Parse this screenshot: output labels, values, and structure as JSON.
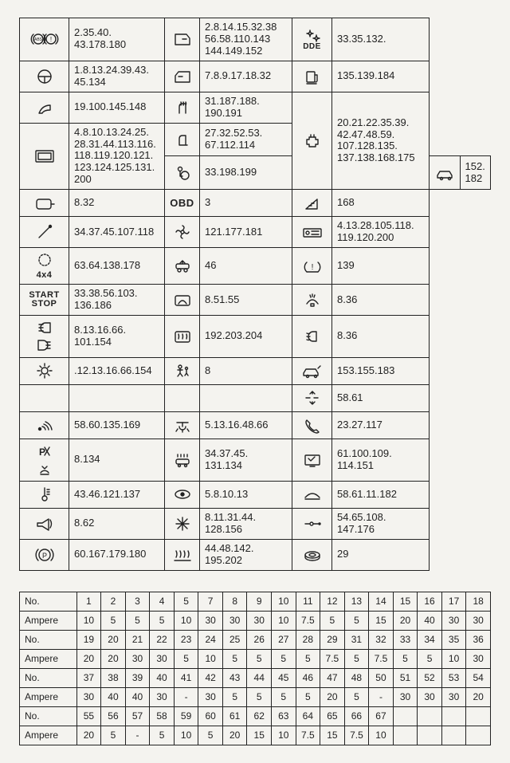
{
  "index_table": {
    "rows": [
      {
        "i1": "abs",
        "t1": "2.35.40. 43.178.180",
        "i2": "door-l",
        "t2": "2.8.14.15.32.38 56.58.110.143 144.149.152",
        "i3": "dde",
        "t3": "33.35.132.",
        "i1_rs": 1,
        "i3_rs": 1
      },
      {
        "i1": "steer",
        "t1": "1.8.13.24.39.43. 45.134",
        "i2": "door-r",
        "t2": "7.8.9.17.18.32",
        "i3": "fuel",
        "t3": "135.139.184",
        "i1_rs": 1,
        "i3_rs": 1
      },
      {
        "i1": "pedal",
        "t1": "19.100.145.148",
        "i2": "heatseat",
        "t2": "31.187.188. 190.191",
        "i3": "engine",
        "t3": "20.21.22.35.39. 42.47.48.59. 107.128.135. 137.138.168.175",
        "i1_rs": 1,
        "i3_rs": 3
      },
      {
        "i1": "display",
        "t1": "4.8.10.13.24.25. 28.31.44.113.116. 118.119.120.121. 123.124.125.131. 200",
        "i2": "seat",
        "t2": "27.32.52.53. 67.112.114",
        "i3": "",
        "t3": "",
        "i1_rs": 2,
        "i3_rs": 0,
        "t1_rs": 2
      },
      {
        "i1": "",
        "t1": "",
        "i2": "airbag",
        "t2": "33.198.199",
        "i3": "car",
        "t3": "152.182",
        "i1_rs": 0,
        "i3_rs": 1
      },
      {
        "i1": "mirror",
        "t1": "8.32",
        "i2": "obd",
        "t2": "3",
        "i3": "ramp",
        "t3": "168",
        "i1_rs": 1,
        "i3_rs": 1
      },
      {
        "i1": "wand",
        "t1": "34.37.45.107.118",
        "i2": "fan",
        "t2": "121.177.181",
        "i3": "radio",
        "t3": "4.13.28.105.118. 119.120.200",
        "i1_rs": 1,
        "i3_rs": 1
      },
      {
        "i1": "4x4",
        "t1": "63.64.138.178",
        "i2": "carlift",
        "t2": "46",
        "i3": "tpms",
        "t3": "139",
        "i1_rs": 1,
        "i3_rs": 1
      },
      {
        "i1": "startstop",
        "t1": "33.38.56.103. 136.186",
        "i2": "rearwipe",
        "t2": "8.51.55",
        "i3": "wash",
        "t3": "8.36",
        "i1_rs": 1,
        "i3_rs": 1
      },
      {
        "i1": "headlight",
        "t1": "8.13.16.66. 101.154",
        "i2": "defrost",
        "t2": "192.203.204",
        "i3": "foglight",
        "t3": "8.36",
        "i1_rs": 1,
        "i3_rs": 1
      },
      {
        "i1": "sun",
        "t1": ".12.13.16.66.154",
        "i2": "child",
        "t2": "8",
        "i3": "tailgate",
        "t3": "153.155.183",
        "i1_rs": 1,
        "i3_rs": 1
      },
      {
        "i1": "blank",
        "t1": "",
        "i2": "blank2",
        "t2": "",
        "i3": "level",
        "t3": "58.61",
        "i1_rs": 1,
        "i3_rs": 1
      },
      {
        "i1": "sensor",
        "t1": "58.60.135.169",
        "i2": "domelight",
        "t2": "5.13.16.48.66",
        "i3": "phone",
        "t3": "23.27.117",
        "i1_rs": 1,
        "i3_rs": 1
      },
      {
        "i1": "park",
        "t1": "8.134",
        "i2": "carwash",
        "t2": "34.37.45. 131.134",
        "i3": "screen",
        "t3": "61.100.109. 114.151",
        "i1_rs": 1,
        "i3_rs": 1
      },
      {
        "i1": "therm",
        "t1": "43.46.121.137",
        "i2": "eye",
        "t2": "5.8.10.13",
        "i3": "sunroof",
        "t3": "58.61.11.182",
        "i1_rs": 1,
        "i3_rs": 1
      },
      {
        "i1": "horn",
        "t1": "8.62",
        "i2": "snow",
        "t2": "8.11.31.44. 128.156",
        "i3": "trailer",
        "t3": "54.65.108. 147.176",
        "i1_rs": 1,
        "i3_rs": 1
      },
      {
        "i1": "pbrake",
        "t1": "60.167.179.180",
        "i2": "glow",
        "t2": "44.48.142. 195.202",
        "i3": "disc",
        "t3": "29",
        "i1_rs": 1,
        "i3_rs": 1
      }
    ]
  },
  "fuse_table": {
    "header_labels": {
      "no": "No.",
      "amp": "Ampere"
    },
    "blocks": [
      {
        "no": [
          "1",
          "2",
          "3",
          "4",
          "5",
          "7",
          "8",
          "9",
          "10",
          "11",
          "12",
          "13",
          "14",
          "15",
          "16",
          "17",
          "18"
        ],
        "amp": [
          "10",
          "5",
          "5",
          "5",
          "10",
          "30",
          "30",
          "30",
          "10",
          "7.5",
          "5",
          "5",
          "15",
          "20",
          "40",
          "30",
          "30"
        ]
      },
      {
        "no": [
          "19",
          "20",
          "21",
          "22",
          "23",
          "24",
          "25",
          "26",
          "27",
          "28",
          "29",
          "31",
          "32",
          "33",
          "34",
          "35",
          "36"
        ],
        "amp": [
          "20",
          "20",
          "30",
          "30",
          "5",
          "10",
          "5",
          "5",
          "5",
          "5",
          "7.5",
          "5",
          "7.5",
          "5",
          "5",
          "10",
          "30"
        ]
      },
      {
        "no": [
          "37",
          "38",
          "39",
          "40",
          "41",
          "42",
          "43",
          "44",
          "45",
          "46",
          "47",
          "48",
          "50",
          "51",
          "52",
          "53",
          "54"
        ],
        "amp": [
          "30",
          "40",
          "40",
          "30",
          "-",
          "30",
          "5",
          "5",
          "5",
          "5",
          "20",
          "5",
          "-",
          "30",
          "30",
          "30",
          "20"
        ]
      },
      {
        "no": [
          "55",
          "56",
          "57",
          "58",
          "59",
          "60",
          "61",
          "62",
          "63",
          "64",
          "65",
          "66",
          "67",
          "",
          "",
          "",
          ""
        ],
        "amp": [
          "20",
          "5",
          "-",
          "5",
          "10",
          "5",
          "20",
          "15",
          "10",
          "7.5",
          "15",
          "7.5",
          "10",
          "",
          "",
          "",
          ""
        ]
      }
    ]
  },
  "labels": {
    "4x4": "4x4",
    "startstop1": "START",
    "startstop2": "STOP",
    "obd": "OBD",
    "dde": "DDE"
  }
}
